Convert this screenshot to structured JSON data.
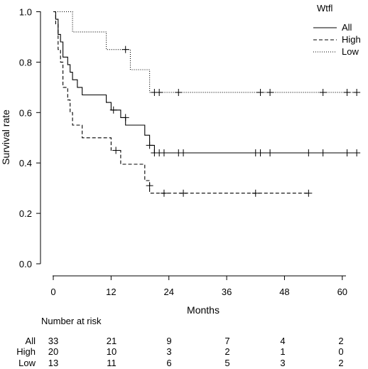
{
  "chart_data": {
    "type": "line",
    "subtype": "kaplan-meier",
    "xlabel": "Months",
    "ylabel": "Survival rate",
    "xlim": [
      0,
      64
    ],
    "ylim": [
      0,
      1.0
    ],
    "x_ticks": [
      "0",
      "12",
      "24",
      "36",
      "48",
      "60"
    ],
    "y_ticks": [
      "0.0",
      "0.2",
      "0.4",
      "0.6",
      "0.8",
      "1.0"
    ],
    "legend_title": "Wtfl",
    "legend_position": "top-right",
    "grid": false,
    "series": [
      {
        "name": "All",
        "linestyle": "solid",
        "steps": [
          [
            0,
            1.0
          ],
          [
            0.5,
            0.97
          ],
          [
            1,
            0.91
          ],
          [
            1.5,
            0.88
          ],
          [
            2,
            0.82
          ],
          [
            3,
            0.79
          ],
          [
            3.5,
            0.76
          ],
          [
            4,
            0.73
          ],
          [
            5,
            0.7
          ],
          [
            6,
            0.67
          ],
          [
            11,
            0.64
          ],
          [
            12,
            0.61
          ],
          [
            14,
            0.58
          ],
          [
            15,
            0.55
          ],
          [
            19,
            0.51
          ],
          [
            20,
            0.47
          ],
          [
            21,
            0.44
          ],
          [
            63,
            0.44
          ]
        ],
        "censored": [
          [
            12.5,
            0.61
          ],
          [
            15,
            0.58
          ],
          [
            20,
            0.47
          ],
          [
            21,
            0.44
          ],
          [
            22,
            0.44
          ],
          [
            23,
            0.44
          ],
          [
            26,
            0.44
          ],
          [
            27,
            0.44
          ],
          [
            42,
            0.44
          ],
          [
            43,
            0.44
          ],
          [
            45,
            0.44
          ],
          [
            53,
            0.44
          ],
          [
            56,
            0.44
          ],
          [
            61,
            0.44
          ],
          [
            63,
            0.44
          ]
        ]
      },
      {
        "name": "High",
        "linestyle": "dashed",
        "steps": [
          [
            0,
            1.0
          ],
          [
            0.5,
            0.95
          ],
          [
            1,
            0.85
          ],
          [
            1.5,
            0.8
          ],
          [
            2,
            0.7
          ],
          [
            3,
            0.65
          ],
          [
            3.5,
            0.6
          ],
          [
            4,
            0.55
          ],
          [
            6,
            0.5
          ],
          [
            8,
            0.5
          ],
          [
            12,
            0.45
          ],
          [
            14,
            0.395
          ],
          [
            18,
            0.395
          ],
          [
            19,
            0.33
          ],
          [
            20,
            0.28
          ],
          [
            53,
            0.28
          ]
        ],
        "censored": [
          [
            13,
            0.45
          ],
          [
            20,
            0.31
          ],
          [
            23,
            0.28
          ],
          [
            27,
            0.28
          ],
          [
            42,
            0.28
          ],
          [
            53,
            0.28
          ]
        ]
      },
      {
        "name": "Low",
        "linestyle": "dotted",
        "steps": [
          [
            0,
            1.0
          ],
          [
            4,
            0.92
          ],
          [
            11,
            0.85
          ],
          [
            16,
            0.77
          ],
          [
            20,
            0.68
          ],
          [
            63,
            0.68
          ]
        ],
        "censored": [
          [
            15,
            0.85
          ],
          [
            21,
            0.68
          ],
          [
            22,
            0.68
          ],
          [
            26,
            0.68
          ],
          [
            43,
            0.68
          ],
          [
            45,
            0.68
          ],
          [
            56,
            0.68
          ],
          [
            61,
            0.68
          ],
          [
            63,
            0.68
          ]
        ]
      }
    ],
    "risk_table": {
      "title": "Number at risk",
      "times": [
        0,
        12,
        24,
        36,
        48,
        60
      ],
      "rows": [
        {
          "label": "All",
          "values": [
            "33",
            "21",
            "9",
            "7",
            "4",
            "2"
          ]
        },
        {
          "label": "High",
          "values": [
            "20",
            "10",
            "3",
            "2",
            "1",
            "0"
          ]
        },
        {
          "label": "Low",
          "values": [
            "13",
            "11",
            "6",
            "5",
            "3",
            "2"
          ]
        }
      ]
    }
  }
}
